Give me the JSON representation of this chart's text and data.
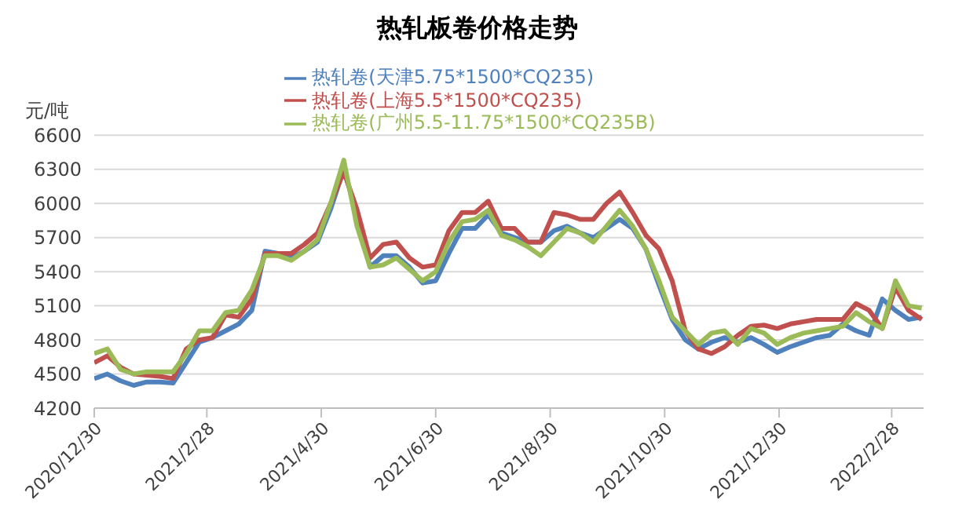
{
  "chart_data": {
    "type": "line",
    "title": "热轧板卷价格走势",
    "ylabel": "元/吨",
    "x": [
      "2020-12-30",
      "2021-01-06",
      "2021-01-13",
      "2021-01-20",
      "2021-01-27",
      "2021-02-03",
      "2021-02-10",
      "2021-02-17",
      "2021-02-24",
      "2021-03-03",
      "2021-03-10",
      "2021-03-17",
      "2021-03-24",
      "2021-03-31",
      "2021-04-07",
      "2021-04-14",
      "2021-04-21",
      "2021-04-28",
      "2021-05-05",
      "2021-05-12",
      "2021-05-19",
      "2021-05-26",
      "2021-06-02",
      "2021-06-09",
      "2021-06-16",
      "2021-06-23",
      "2021-06-30",
      "2021-07-07",
      "2021-07-14",
      "2021-07-21",
      "2021-07-28",
      "2021-08-04",
      "2021-08-11",
      "2021-08-18",
      "2021-08-25",
      "2021-09-01",
      "2021-09-08",
      "2021-09-15",
      "2021-09-22",
      "2021-09-29",
      "2021-10-06",
      "2021-10-13",
      "2021-10-20",
      "2021-10-27",
      "2021-11-03",
      "2021-11-10",
      "2021-11-17",
      "2021-11-24",
      "2021-12-01",
      "2021-12-08",
      "2021-12-15",
      "2021-12-22",
      "2021-12-29",
      "2022-01-05",
      "2022-01-12",
      "2022-01-19",
      "2022-01-26",
      "2022-02-02",
      "2022-02-09",
      "2022-02-16",
      "2022-02-23",
      "2022-03-02",
      "2022-03-09",
      "2022-03-16"
    ],
    "series": [
      {
        "name": "热轧卷(天津5.75*1500*CQ235)",
        "color": "#4f81bd",
        "values": [
          4460,
          4500,
          4440,
          4400,
          4430,
          4430,
          4420,
          4600,
          4780,
          4820,
          4880,
          4940,
          5060,
          5580,
          5560,
          5520,
          5580,
          5660,
          5950,
          6300,
          5900,
          5440,
          5540,
          5540,
          5440,
          5300,
          5320,
          5560,
          5780,
          5780,
          5900,
          5740,
          5700,
          5660,
          5660,
          5760,
          5800,
          5740,
          5700,
          5780,
          5860,
          5780,
          5600,
          5280,
          4980,
          4800,
          4720,
          4780,
          4820,
          4780,
          4820,
          4760,
          4690,
          4740,
          4780,
          4820,
          4840,
          4940,
          4880,
          4840,
          5160,
          5060,
          4980,
          5000
        ]
      },
      {
        "name": "热轧卷(上海5.5*1500*CQ235)",
        "color": "#c0504d",
        "values": [
          4600,
          4660,
          4560,
          4500,
          4490,
          4480,
          4460,
          4720,
          4800,
          4820,
          5020,
          5000,
          5160,
          5560,
          5560,
          5560,
          5640,
          5740,
          6000,
          6280,
          5950,
          5520,
          5640,
          5660,
          5520,
          5440,
          5460,
          5760,
          5920,
          5920,
          6020,
          5780,
          5780,
          5660,
          5660,
          5920,
          5900,
          5860,
          5860,
          6000,
          6100,
          5920,
          5720,
          5600,
          5320,
          4880,
          4720,
          4680,
          4740,
          4840,
          4920,
          4930,
          4900,
          4940,
          4960,
          4980,
          4980,
          4980,
          5120,
          5060,
          4900,
          5260,
          5060,
          4980
        ]
      },
      {
        "name": "热轧卷(广州5.5-11.75*1500*CQ235B)",
        "color": "#9bbb59",
        "values": [
          4680,
          4720,
          4540,
          4500,
          4520,
          4520,
          4520,
          4680,
          4880,
          4880,
          5040,
          5060,
          5240,
          5540,
          5540,
          5500,
          5580,
          5680,
          6000,
          6380,
          5800,
          5440,
          5460,
          5520,
          5420,
          5320,
          5400,
          5660,
          5840,
          5860,
          5940,
          5720,
          5680,
          5620,
          5540,
          5660,
          5780,
          5740,
          5660,
          5800,
          5940,
          5800,
          5600,
          5320,
          5000,
          4880,
          4760,
          4860,
          4880,
          4760,
          4900,
          4860,
          4760,
          4820,
          4860,
          4880,
          4900,
          4920,
          5040,
          4960,
          4900,
          5320,
          5100,
          5080
        ]
      }
    ],
    "xlim": [
      "2020-12-30",
      "2022-03-17"
    ],
    "xticks": [
      {
        "value": "2020-12-30",
        "label": "2020/12/30"
      },
      {
        "value": "2021-02-28",
        "label": "2021/2/28"
      },
      {
        "value": "2021-04-30",
        "label": "2021/4/30"
      },
      {
        "value": "2021-06-30",
        "label": "2021/6/30"
      },
      {
        "value": "2021-08-30",
        "label": "2021/8/30"
      },
      {
        "value": "2021-10-30",
        "label": "2021/10/30"
      },
      {
        "value": "2021-12-30",
        "label": "2021/12/30"
      },
      {
        "value": "2022-02-28",
        "label": "2022/2/28"
      }
    ],
    "ylim": [
      4200,
      6600
    ],
    "yticks": [
      4200,
      4500,
      4800,
      5100,
      5400,
      5700,
      6000,
      6300,
      6600
    ],
    "grid": "y",
    "legend": "top",
    "marker": "none",
    "line_style": "solid"
  }
}
